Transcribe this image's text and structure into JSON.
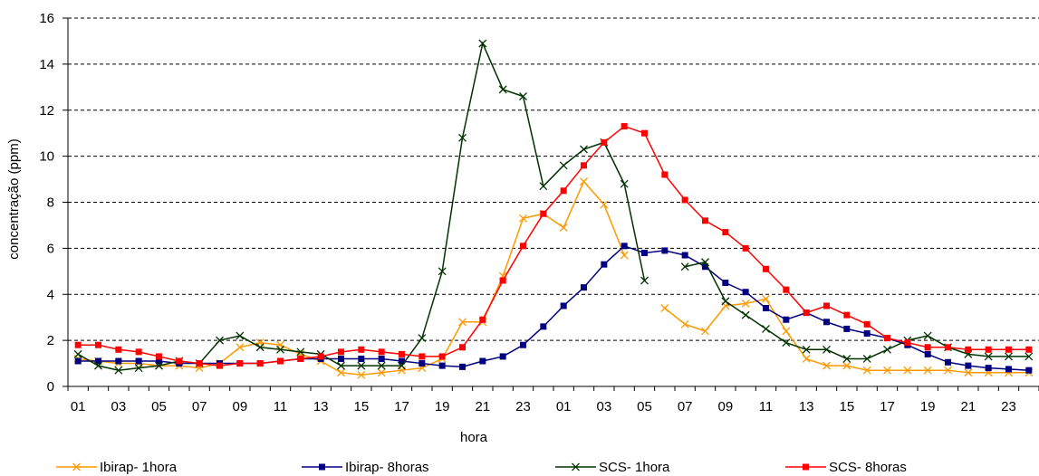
{
  "chart_data": {
    "type": "line",
    "title": "",
    "xlabel": "hora",
    "ylabel": "concentração (ppm)",
    "ylim": [
      0,
      16
    ],
    "yticks": [
      "0",
      "2",
      "4",
      "6",
      "8",
      "10",
      "12",
      "14",
      "16"
    ],
    "ytick_values": [
      0,
      2,
      4,
      6,
      8,
      10,
      12,
      14,
      16
    ],
    "grid": "horizontal dashed",
    "legend_position": "bottom",
    "x_tick_labels": [
      "01",
      "03",
      "05",
      "07",
      "09",
      "11",
      "13",
      "15",
      "17",
      "19",
      "21",
      "23",
      "01",
      "03",
      "05",
      "07",
      "09",
      "11",
      "13",
      "15",
      "17",
      "19",
      "21",
      "23"
    ],
    "x_count": 48,
    "series": [
      {
        "name": "Ibirap- 1hora",
        "color": "#FF9900",
        "marker": "x",
        "values": [
          1.2,
          1.1,
          1.0,
          1.0,
          0.9,
          0.9,
          0.8,
          1.0,
          1.7,
          1.9,
          1.8,
          1.4,
          1.1,
          0.6,
          0.5,
          0.6,
          0.7,
          0.8,
          1.2,
          2.8,
          2.8,
          4.8,
          7.3,
          7.5,
          6.9,
          8.9,
          7.9,
          5.7,
          null,
          3.4,
          2.7,
          2.4,
          3.5,
          3.6,
          3.8,
          2.4,
          1.2,
          0.9,
          0.9,
          0.7,
          0.7,
          0.7,
          0.7,
          0.7,
          0.6,
          0.6,
          0.6,
          0.6
        ]
      },
      {
        "name": "Ibirap- 8horas",
        "color": "#000080",
        "marker": "square",
        "values": [
          1.1,
          1.1,
          1.1,
          1.1,
          1.1,
          1.0,
          1.0,
          1.0,
          1.0,
          1.0,
          1.1,
          1.2,
          1.2,
          1.2,
          1.2,
          1.2,
          1.1,
          1.0,
          0.9,
          0.85,
          1.1,
          1.3,
          1.8,
          2.6,
          3.5,
          4.3,
          5.3,
          6.1,
          5.8,
          5.9,
          5.7,
          5.2,
          4.5,
          4.1,
          3.4,
          2.9,
          3.2,
          2.8,
          2.5,
          2.3,
          2.1,
          1.8,
          1.4,
          1.05,
          0.9,
          0.8,
          0.75,
          0.7
        ]
      },
      {
        "name": "SCS- 1hora",
        "color": "#003300",
        "marker": "x",
        "values": [
          1.4,
          0.9,
          0.7,
          0.8,
          0.9,
          1.1,
          1.0,
          2.0,
          2.2,
          1.7,
          1.6,
          1.5,
          1.4,
          0.9,
          0.9,
          0.9,
          0.9,
          2.1,
          5.0,
          10.8,
          14.9,
          12.9,
          12.6,
          8.7,
          9.6,
          10.3,
          10.6,
          8.8,
          4.6,
          null,
          5.2,
          5.4,
          3.7,
          3.1,
          2.5,
          1.9,
          1.6,
          1.6,
          1.2,
          1.2,
          1.6,
          2.0,
          2.2,
          1.7,
          1.4,
          1.3,
          1.3,
          1.3
        ]
      },
      {
        "name": "SCS- 8horas",
        "color": "#FF0000",
        "marker": "square",
        "values": [
          1.8,
          1.8,
          1.6,
          1.5,
          1.3,
          1.1,
          1.0,
          0.9,
          1.0,
          1.0,
          1.1,
          1.2,
          1.3,
          1.5,
          1.6,
          1.5,
          1.4,
          1.3,
          1.3,
          1.7,
          2.9,
          4.6,
          6.1,
          7.5,
          8.5,
          9.6,
          10.6,
          11.3,
          11.0,
          9.2,
          8.1,
          7.2,
          6.7,
          6.0,
          5.1,
          4.2,
          3.2,
          3.5,
          3.1,
          2.7,
          2.1,
          1.9,
          1.7,
          1.7,
          1.6,
          1.6,
          1.6,
          1.6
        ]
      }
    ]
  }
}
